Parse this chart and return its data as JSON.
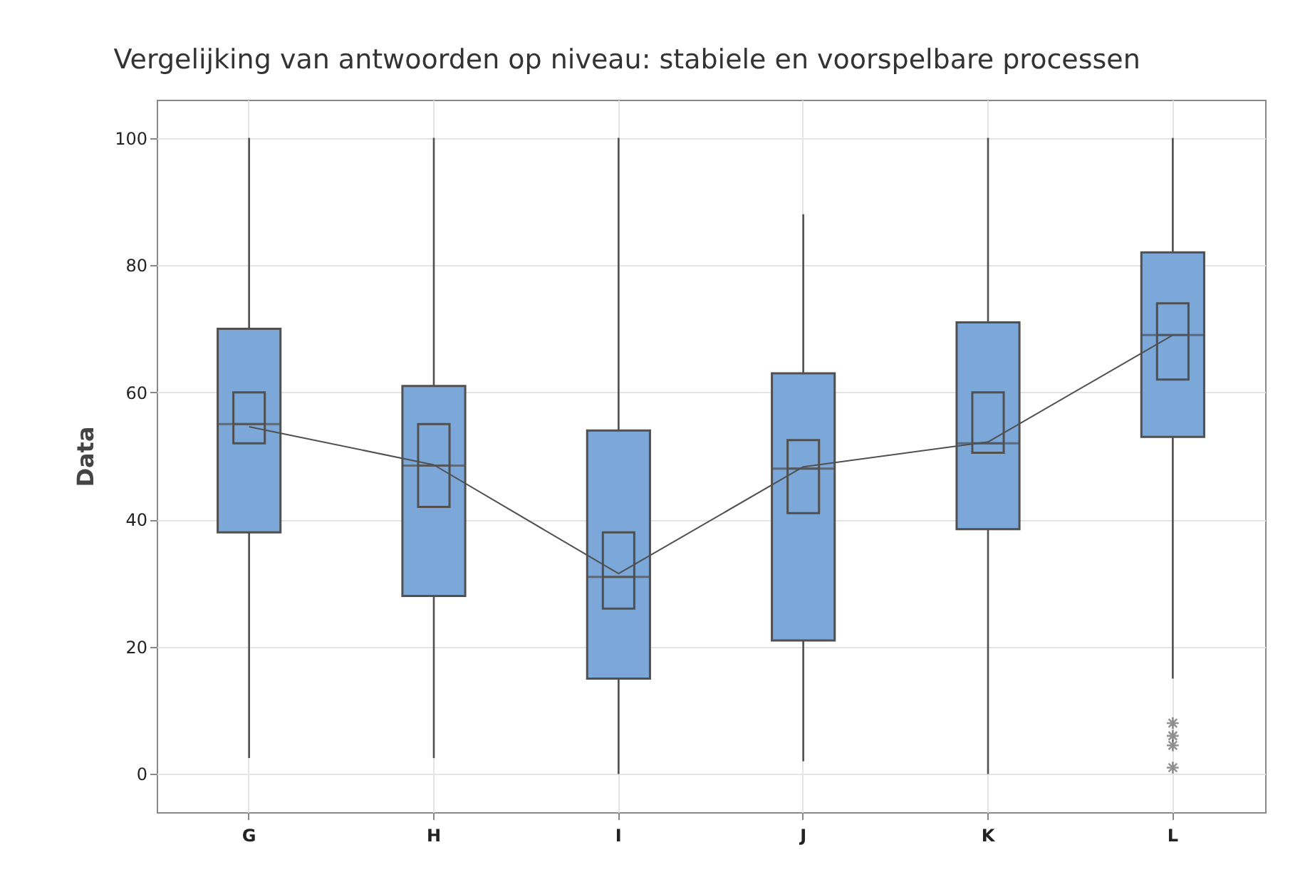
{
  "chart_data": {
    "type": "box",
    "title": "Vergelijking van antwoorden op niveau: stabiele en voorspelbare processen",
    "ylabel": "Data",
    "categories": [
      "G",
      "H",
      "I",
      "J",
      "K",
      "L"
    ],
    "ylim": [
      -6,
      106
    ],
    "yticks": [
      0,
      20,
      40,
      60,
      80,
      100
    ],
    "grid": true,
    "series": [
      {
        "type": "box",
        "color": "#7ba7d9",
        "boxes": [
          {
            "low": 2.5,
            "q1": 38,
            "median": 55,
            "q3": 70,
            "high": 100
          },
          {
            "low": 2.5,
            "q1": 28,
            "median": 48.5,
            "q3": 61,
            "high": 100
          },
          {
            "low": 0,
            "q1": 15,
            "median": 31,
            "q3": 54,
            "high": 100
          },
          {
            "low": 2,
            "q1": 21,
            "median": 48,
            "q3": 63,
            "high": 88
          },
          {
            "low": 0,
            "q1": 38.5,
            "median": 52,
            "q3": 71,
            "high": 100
          },
          {
            "low": 15,
            "q1": 53,
            "median": 69,
            "q3": 82,
            "high": 100,
            "outliers": [
              8,
              6,
              4.5,
              1
            ]
          }
        ]
      },
      {
        "type": "box",
        "color": "#505050",
        "boxes": [
          {
            "low": 52,
            "q1": 52,
            "median": 55,
            "q3": 60,
            "high": 60
          },
          {
            "low": 42,
            "q1": 42,
            "median": 48.5,
            "q3": 55,
            "high": 55
          },
          {
            "low": 26,
            "q1": 26,
            "median": 31,
            "q3": 38,
            "high": 38
          },
          {
            "low": 41,
            "q1": 41,
            "median": 48,
            "q3": 52.5,
            "high": 52.5
          },
          {
            "low": 50.5,
            "q1": 50.5,
            "median": 52,
            "q3": 60,
            "high": 60
          },
          {
            "low": 62,
            "q1": 62,
            "median": 69,
            "q3": 74,
            "high": 74
          }
        ]
      },
      {
        "type": "line",
        "color": "#505050",
        "values": [
          54.6,
          48.6,
          31.5,
          48.3,
          52.2,
          69
        ]
      }
    ]
  }
}
